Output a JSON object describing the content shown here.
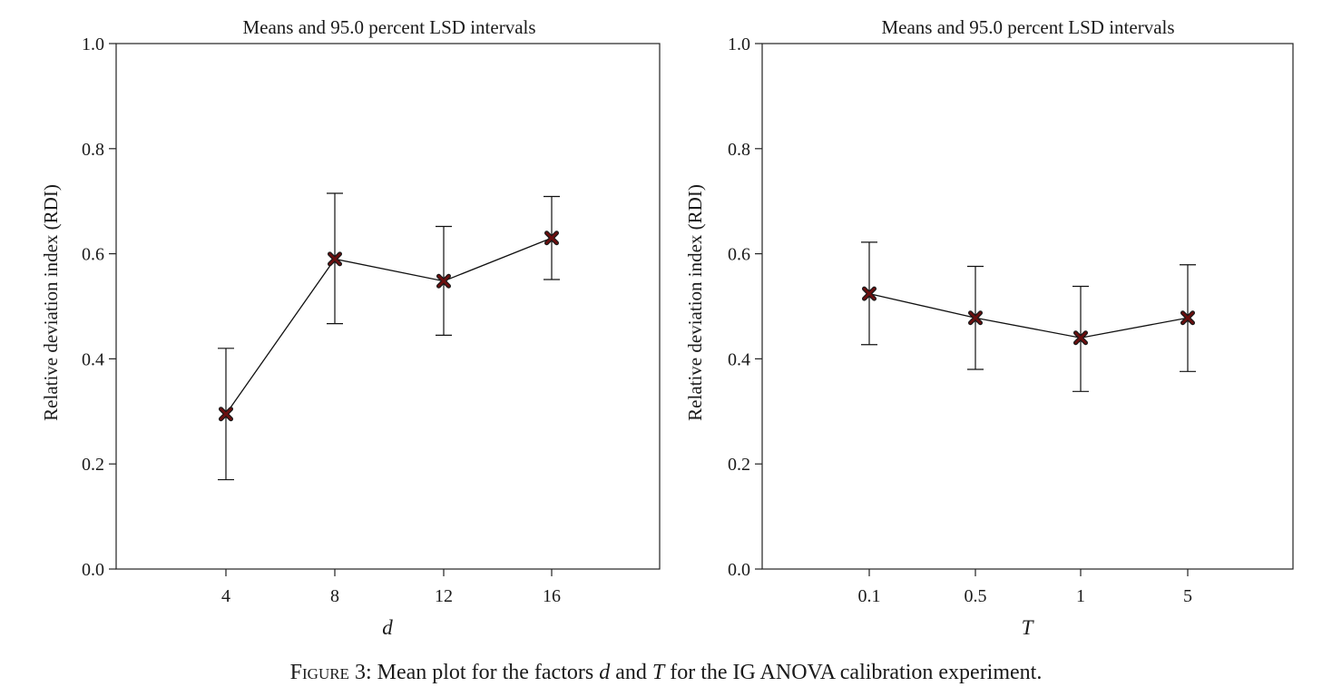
{
  "chart_data": [
    {
      "type": "line",
      "subtype": "means-with-error-bars",
      "title": "Means and 95.0 percent LSD intervals",
      "xlabel": "d",
      "ylabel": "Relative deviation index (RDI)",
      "categories": [
        "4",
        "8",
        "12",
        "16"
      ],
      "means": [
        0.295,
        0.59,
        0.548,
        0.63
      ],
      "lower": [
        0.17,
        0.467,
        0.445,
        0.551
      ],
      "upper": [
        0.42,
        0.715,
        0.652,
        0.709
      ],
      "ylim": [
        0.0,
        1.0
      ],
      "yticks": [
        "0.0",
        "0.2",
        "0.4",
        "0.6",
        "0.8",
        "1.0"
      ],
      "grid": false,
      "marker": "x",
      "marker_color": "#6b0f0f"
    },
    {
      "type": "line",
      "subtype": "means-with-error-bars",
      "title": "Means and 95.0 percent LSD intervals",
      "xlabel": "T",
      "ylabel": "Relative deviation index (RDI)",
      "categories": [
        "0.1",
        "0.5",
        "1",
        "5"
      ],
      "means": [
        0.524,
        0.478,
        0.44,
        0.478
      ],
      "lower": [
        0.427,
        0.38,
        0.338,
        0.376
      ],
      "upper": [
        0.622,
        0.576,
        0.538,
        0.579
      ],
      "ylim": [
        0.0,
        1.0
      ],
      "yticks": [
        "0.0",
        "0.2",
        "0.4",
        "0.6",
        "0.8",
        "1.0"
      ],
      "grid": false,
      "marker": "x",
      "marker_color": "#6b0f0f"
    }
  ],
  "caption": {
    "label": "Figure 3",
    "text_1": ": Mean plot for the factors ",
    "var_1": "d",
    "text_2": " and ",
    "var_2": "T",
    "text_3": " for the IG ANOVA calibration experiment."
  }
}
